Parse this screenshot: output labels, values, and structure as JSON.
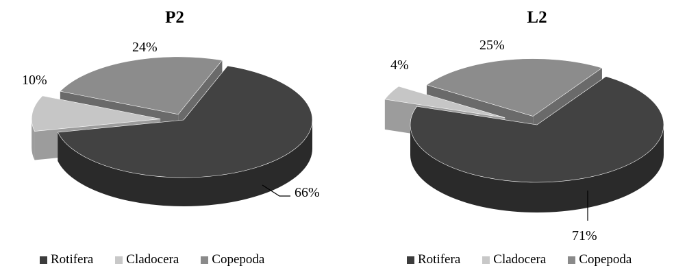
{
  "charts": [
    {
      "title": "P2",
      "chart_data": {
        "type": "pie",
        "title": "P2",
        "categories": [
          "Rotifera",
          "Cladocera",
          "Copepoda"
        ],
        "values": [
          66,
          10,
          24
        ],
        "labels": [
          "66%",
          "10%",
          "24%"
        ],
        "exploded": true,
        "style": "3d",
        "legend_position": "bottom"
      }
    },
    {
      "title": "L2",
      "chart_data": {
        "type": "pie",
        "title": "L2",
        "categories": [
          "Rotifera",
          "Cladocera",
          "Copepoda"
        ],
        "values": [
          71,
          4,
          25
        ],
        "labels": [
          "71%",
          "4%",
          "25%"
        ],
        "exploded": true,
        "style": "3d",
        "legend_position": "bottom"
      }
    }
  ],
  "legend": [
    {
      "label": "Rotifera",
      "color": "#3c3c3c"
    },
    {
      "label": "Cladocera",
      "color": "#c8c8c8"
    },
    {
      "label": "Copepoda",
      "color": "#8a8a8a"
    }
  ],
  "colors": {
    "Rotifera": {
      "top": "#424242",
      "side": "#2a2a2a"
    },
    "Cladocera": {
      "top": "#c6c6c6",
      "side": "#9c9c9c"
    },
    "Copepoda": {
      "top": "#8c8c8c",
      "side": "#6a6a6a"
    }
  }
}
